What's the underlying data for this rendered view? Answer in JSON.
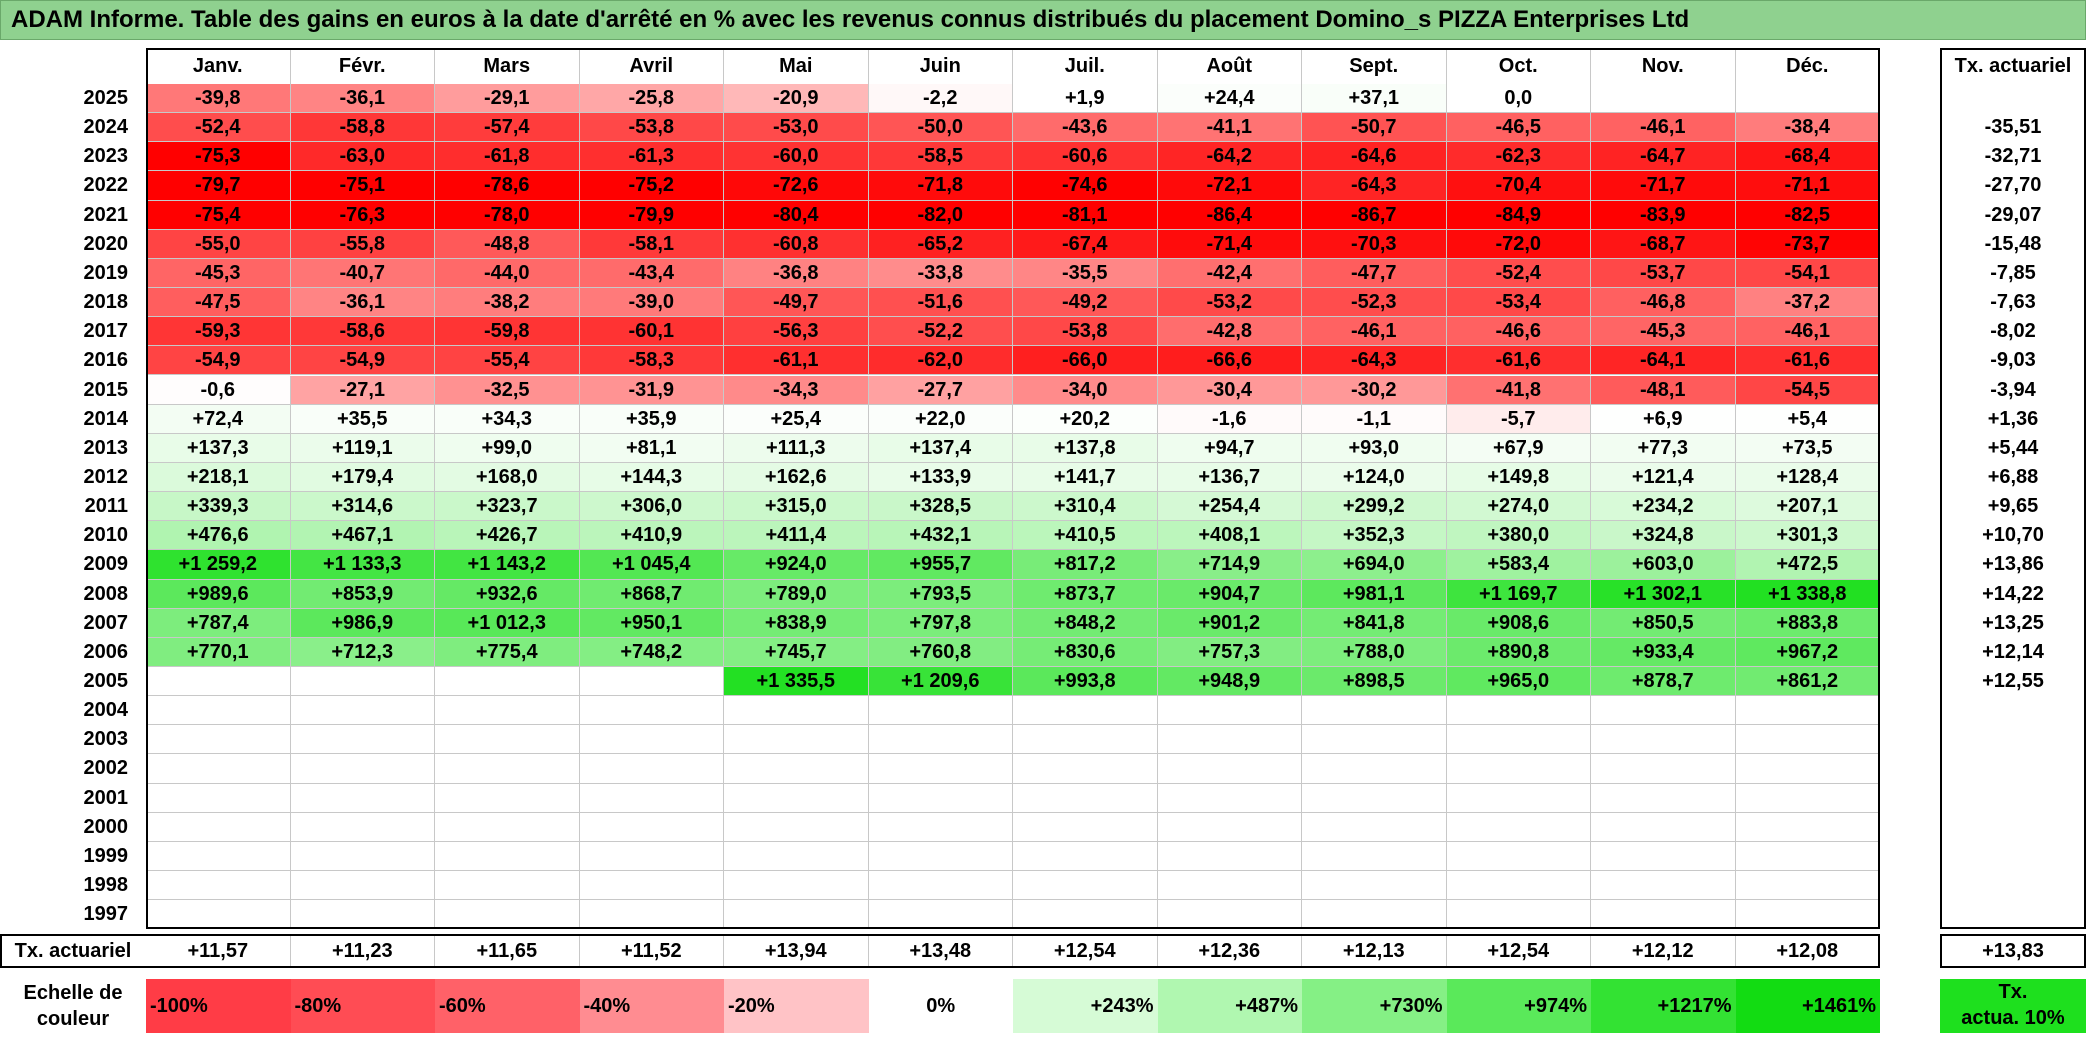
{
  "title": "ADAM Informe. Table des gains en euros à la date d'arrêté en % avec les revenus connus distribués du placement Domino_s PIZZA Enterprises Ltd",
  "chart_data": {
    "type": "heatmap",
    "months": [
      "Janv.",
      "Févr.",
      "Mars",
      "Avril",
      "Mai",
      "Juin",
      "Juil.",
      "Août",
      "Sept.",
      "Oct.",
      "Nov.",
      "Déc."
    ],
    "right_header": "Tx. actuariel",
    "years": [
      "2025",
      "2024",
      "2023",
      "2022",
      "2021",
      "2020",
      "2019",
      "2018",
      "2017",
      "2016",
      "2015",
      "2014",
      "2013",
      "2012",
      "2011",
      "2010",
      "2009",
      "2008",
      "2007",
      "2006",
      "2005",
      "2004",
      "2003",
      "2002",
      "2001",
      "2000",
      "1999",
      "1998",
      "1997"
    ],
    "values": [
      [
        -39.8,
        -36.1,
        -29.1,
        -25.8,
        -20.9,
        -2.2,
        1.9,
        24.4,
        37.1,
        0.0,
        null,
        null
      ],
      [
        -52.4,
        -58.8,
        -57.4,
        -53.8,
        -53.0,
        -50.0,
        -43.6,
        -41.1,
        -50.7,
        -46.5,
        -46.1,
        -38.4
      ],
      [
        -75.3,
        -63.0,
        -61.8,
        -61.3,
        -60.0,
        -58.5,
        -60.6,
        -64.2,
        -64.6,
        -62.3,
        -64.7,
        -68.4
      ],
      [
        -79.7,
        -75.1,
        -78.6,
        -75.2,
        -72.6,
        -71.8,
        -74.6,
        -72.1,
        -64.3,
        -70.4,
        -71.7,
        -71.1
      ],
      [
        -75.4,
        -76.3,
        -78.0,
        -79.9,
        -80.4,
        -82.0,
        -81.1,
        -86.4,
        -86.7,
        -84.9,
        -83.9,
        -82.5
      ],
      [
        -55.0,
        -55.8,
        -48.8,
        -58.1,
        -60.8,
        -65.2,
        -67.4,
        -71.4,
        -70.3,
        -72.0,
        -68.7,
        -73.7
      ],
      [
        -45.3,
        -40.7,
        -44.0,
        -43.4,
        -36.8,
        -33.8,
        -35.5,
        -42.4,
        -47.7,
        -52.4,
        -53.7,
        -54.1
      ],
      [
        -47.5,
        -36.1,
        -38.2,
        -39.0,
        -49.7,
        -51.6,
        -49.2,
        -53.2,
        -52.3,
        -53.4,
        -46.8,
        -37.2
      ],
      [
        -59.3,
        -58.6,
        -59.8,
        -60.1,
        -56.3,
        -52.2,
        -53.8,
        -42.8,
        -46.1,
        -46.6,
        -45.3,
        -46.1
      ],
      [
        -54.9,
        -54.9,
        -55.4,
        -58.3,
        -61.1,
        -62.0,
        -66.0,
        -66.6,
        -64.3,
        -61.6,
        -64.1,
        -61.6
      ],
      [
        -0.6,
        -27.1,
        -32.5,
        -31.9,
        -34.3,
        -27.7,
        -34.0,
        -30.4,
        -30.2,
        -41.8,
        -48.1,
        -54.5
      ],
      [
        72.4,
        35.5,
        34.3,
        35.9,
        25.4,
        22.0,
        20.2,
        -1.6,
        -1.1,
        -5.7,
        6.9,
        5.4
      ],
      [
        137.3,
        119.1,
        99.0,
        81.1,
        111.3,
        137.4,
        137.8,
        94.7,
        93.0,
        67.9,
        77.3,
        73.5
      ],
      [
        218.1,
        179.4,
        168.0,
        144.3,
        162.6,
        133.9,
        141.7,
        136.7,
        124.0,
        149.8,
        121.4,
        128.4
      ],
      [
        339.3,
        314.6,
        323.7,
        306.0,
        315.0,
        328.5,
        310.4,
        254.4,
        299.2,
        274.0,
        234.2,
        207.1
      ],
      [
        476.6,
        467.1,
        426.7,
        410.9,
        411.4,
        432.1,
        410.5,
        408.1,
        352.3,
        380.0,
        324.8,
        301.3
      ],
      [
        1259.2,
        1133.3,
        1143.2,
        1045.4,
        924.0,
        955.7,
        817.2,
        714.9,
        694.0,
        583.4,
        603.0,
        472.5
      ],
      [
        989.6,
        853.9,
        932.6,
        868.7,
        789.0,
        793.5,
        873.7,
        904.7,
        981.1,
        1169.7,
        1302.1,
        1338.8
      ],
      [
        787.4,
        986.9,
        1012.3,
        950.1,
        838.9,
        797.8,
        848.2,
        901.2,
        841.8,
        908.6,
        850.5,
        883.8
      ],
      [
        770.1,
        712.3,
        775.4,
        748.2,
        745.7,
        760.8,
        830.6,
        757.3,
        788.0,
        890.8,
        933.4,
        967.2
      ],
      [
        null,
        null,
        null,
        null,
        1335.5,
        1209.6,
        993.8,
        948.9,
        898.5,
        965.0,
        878.7,
        861.2
      ],
      [
        null,
        null,
        null,
        null,
        null,
        null,
        null,
        null,
        null,
        null,
        null,
        null
      ],
      [
        null,
        null,
        null,
        null,
        null,
        null,
        null,
        null,
        null,
        null,
        null,
        null
      ],
      [
        null,
        null,
        null,
        null,
        null,
        null,
        null,
        null,
        null,
        null,
        null,
        null
      ],
      [
        null,
        null,
        null,
        null,
        null,
        null,
        null,
        null,
        null,
        null,
        null,
        null
      ],
      [
        null,
        null,
        null,
        null,
        null,
        null,
        null,
        null,
        null,
        null,
        null,
        null
      ],
      [
        null,
        null,
        null,
        null,
        null,
        null,
        null,
        null,
        null,
        null,
        null,
        null
      ],
      [
        null,
        null,
        null,
        null,
        null,
        null,
        null,
        null,
        null,
        null,
        null,
        null
      ],
      [
        null,
        null,
        null,
        null,
        null,
        null,
        null,
        null,
        null,
        null,
        null,
        null
      ]
    ],
    "row_rates": [
      "",
      "-35,51",
      "-32,71",
      "-27,70",
      "-29,07",
      "-15,48",
      "-7,85",
      "-7,63",
      "-8,02",
      "-9,03",
      "-3,94",
      "+1,36",
      "+5,44",
      "+6,88",
      "+9,65",
      "+10,70",
      "+13,86",
      "+14,22",
      "+13,25",
      "+12,14",
      "+12,55",
      "",
      "",
      "",
      "",
      "",
      "",
      "",
      ""
    ],
    "footer_label": "Tx. actuariel",
    "footer_rates": [
      "+11,57",
      "+11,23",
      "+11,65",
      "+11,52",
      "+13,94",
      "+13,48",
      "+12,54",
      "+12,36",
      "+12,13",
      "+12,54",
      "+12,12",
      "+12,08"
    ],
    "footer_total": "+13,83",
    "legend": {
      "label": [
        "Echelle de",
        "couleur"
      ],
      "steps": [
        {
          "label": "-100%",
          "color": "#ff3c46"
        },
        {
          "label": "-80%",
          "color": "#ff4c54"
        },
        {
          "label": "-60%",
          "color": "#ff6168"
        },
        {
          "label": "-40%",
          "color": "#ff8c91"
        },
        {
          "label": "-20%",
          "color": "#ffc3c6"
        },
        {
          "label": "0%",
          "color": "#ffffff"
        },
        {
          "label": "+243%",
          "color": "#d6fbd6"
        },
        {
          "label": "+487%",
          "color": "#b0f7b0"
        },
        {
          "label": "+730%",
          "color": "#85f085"
        },
        {
          "label": "+974%",
          "color": "#5ae95a"
        },
        {
          "label": "+1217%",
          "color": "#33e233"
        },
        {
          "label": "+1461%",
          "color": "#12dc12"
        }
      ],
      "rate_label": [
        "Tx.",
        "actua. 10%"
      ],
      "rate_color": "#1ee01e"
    },
    "colors": {
      "negative_max": "#ff0000",
      "positive_max": "#22e022",
      "title_bg": "#8fd18f"
    }
  }
}
